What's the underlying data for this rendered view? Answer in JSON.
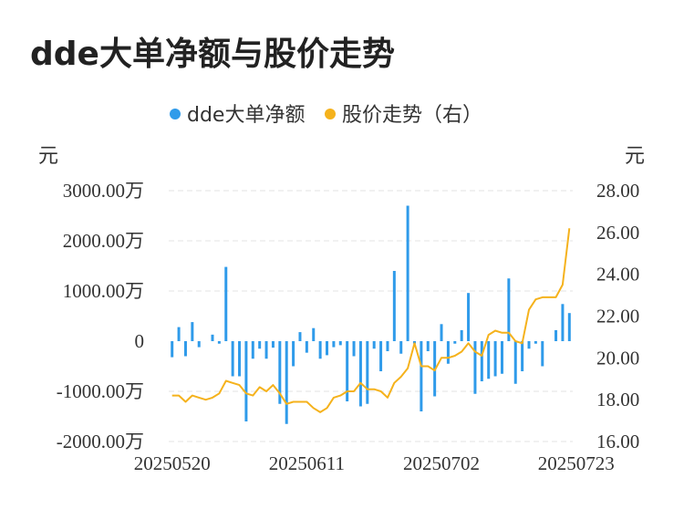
{
  "title": "dde大单净额与股价走势",
  "legend": [
    {
      "label": "dde大单净额",
      "color": "#2f9bea"
    },
    {
      "label": "股价走势（右）",
      "color": "#f5b21c"
    }
  ],
  "units": {
    "left": "元",
    "right": "元"
  },
  "chart_data": {
    "type": "bar+line",
    "grid": true,
    "legend_position": "top",
    "left_axis": {
      "ticks": [
        "3000.00万",
        "2000.00万",
        "1000.00万",
        "0",
        "-1000.00万",
        "-2000.00万"
      ],
      "min": -2000,
      "max": 3000
    },
    "right_axis": {
      "ticks": [
        "28.00",
        "26.00",
        "24.00",
        "22.00",
        "20.00",
        "18.00",
        "16.00"
      ],
      "min": 16,
      "max": 28
    },
    "x_tick_labels": [
      "20250520",
      "20250611",
      "20250702",
      "20250723"
    ],
    "x_tick_positions": [
      0,
      20,
      40,
      60
    ],
    "series": [
      {
        "name": "dde大单净额",
        "axis": "left",
        "type": "bar",
        "values": [
          -320,
          280,
          -300,
          380,
          -120,
          0,
          130,
          -50,
          1480,
          -700,
          -700,
          -1600,
          -350,
          -150,
          -350,
          -130,
          -1250,
          -1650,
          -500,
          180,
          -230,
          260,
          -350,
          -280,
          -120,
          -80,
          -1200,
          -300,
          -1300,
          -1250,
          -150,
          -600,
          -200,
          1400,
          -250,
          2700,
          -50,
          -1400,
          -200,
          -1100,
          340,
          -450,
          -50,
          220,
          960,
          -1050,
          -800,
          -750,
          -700,
          -650,
          1250,
          -850,
          -600,
          -150,
          -50,
          -500,
          0,
          220,
          740,
          560
        ]
      },
      {
        "name": "股价走势（右）",
        "axis": "right",
        "type": "line",
        "values": [
          18.2,
          18.2,
          17.9,
          18.2,
          18.1,
          18.0,
          18.1,
          18.3,
          18.9,
          18.8,
          18.7,
          18.3,
          18.2,
          18.6,
          18.4,
          18.7,
          18.3,
          17.8,
          17.9,
          17.9,
          17.9,
          17.6,
          17.4,
          17.6,
          18.1,
          18.2,
          18.4,
          18.4,
          18.8,
          18.5,
          18.5,
          18.4,
          18.1,
          18.8,
          19.1,
          19.5,
          20.7,
          19.6,
          19.6,
          19.4,
          20.0,
          20.0,
          20.1,
          20.3,
          20.7,
          20.3,
          20.1,
          21.1,
          21.3,
          21.2,
          21.2,
          20.8,
          20.7,
          22.3,
          22.8,
          22.9,
          22.9,
          22.9,
          23.5,
          26.2
        ]
      }
    ]
  }
}
